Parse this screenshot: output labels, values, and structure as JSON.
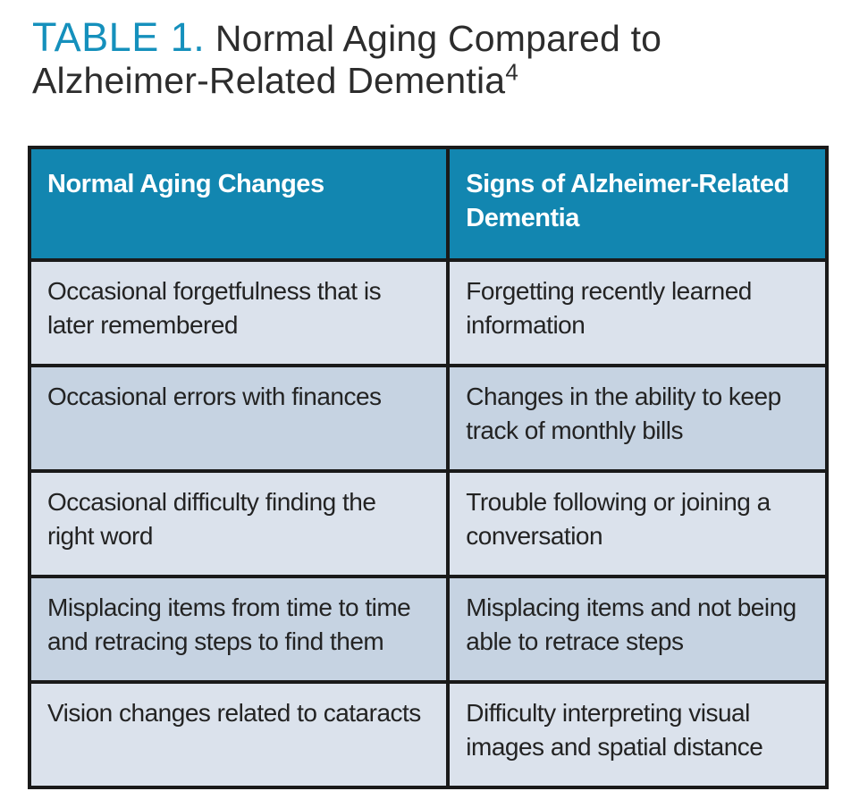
{
  "title": {
    "label": "TABLE 1.",
    "text": " Normal Aging Compared to Alzheimer-Related Dementia",
    "superscript": "4"
  },
  "table": {
    "headers": [
      "Normal Aging Changes",
      "Signs of Alzheimer-Related Dementia"
    ],
    "rows": [
      {
        "cells": [
          "Occasional forgetfulness that is later remembered",
          "Forgetting recently learned information"
        ]
      },
      {
        "cells": [
          "Occasional errors with finances",
          "Changes in the ability to keep track of monthly bills"
        ]
      },
      {
        "cells": [
          "Occasional difficulty finding the right word",
          "Trouble following or joining a conversation"
        ]
      },
      {
        "cells": [
          "Misplacing items from time to time and retracing steps to find them",
          "Misplacing items and not being able to retrace steps"
        ]
      },
      {
        "cells": [
          "Vision changes related to cataracts",
          "Difficulty interpreting visual images and spatial distance"
        ]
      }
    ]
  },
  "colors": {
    "accent_teal": "#1590bc",
    "header_bg": "#1286b0",
    "header_text": "#ffffff",
    "row_light": "#dbe2ec",
    "row_dark": "#c6d3e2",
    "border": "#1a1a1a",
    "title_text": "#2d2d2d",
    "body_text": "#232323"
  }
}
